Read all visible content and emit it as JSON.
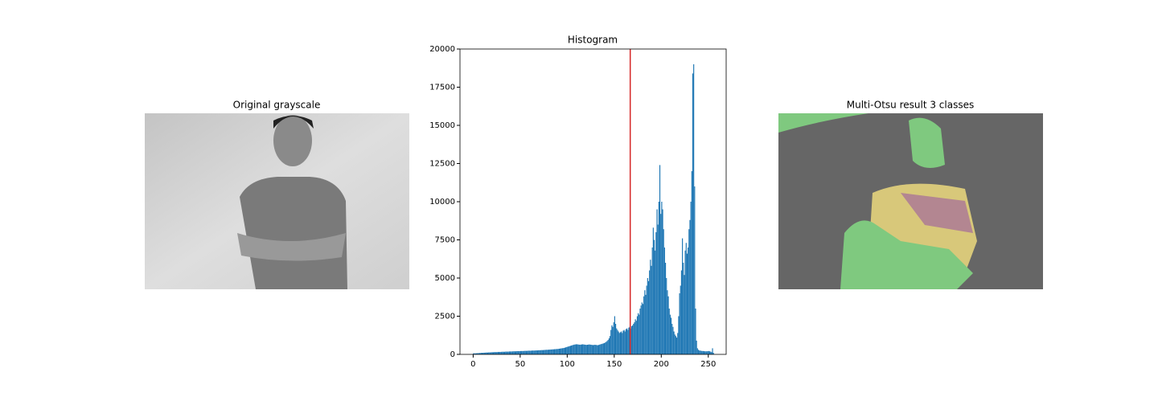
{
  "chart_data": [
    {
      "type": "image",
      "title": "Original grayscale"
    },
    {
      "type": "histogram",
      "title": "Histogram",
      "color": "#1f77b4",
      "bins": [
        0,
        1,
        2,
        3,
        4,
        5,
        6,
        7,
        8,
        9,
        10,
        11,
        12,
        13,
        14,
        15,
        16,
        17,
        18,
        19,
        20,
        21,
        22,
        23,
        24,
        25,
        26,
        27,
        28,
        29,
        30,
        31,
        32,
        33,
        34,
        35,
        36,
        37,
        38,
        39,
        40,
        41,
        42,
        43,
        44,
        45,
        46,
        47,
        48,
        49,
        50,
        51,
        52,
        53,
        54,
        55,
        56,
        57,
        58,
        59,
        60,
        61,
        62,
        63,
        64,
        65,
        66,
        67,
        68,
        69,
        70,
        71,
        72,
        73,
        74,
        75,
        76,
        77,
        78,
        79,
        80,
        81,
        82,
        83,
        84,
        85,
        86,
        87,
        88,
        89,
        90,
        91,
        92,
        93,
        94,
        95,
        96,
        97,
        98,
        99,
        100,
        101,
        102,
        103,
        104,
        105,
        106,
        107,
        108,
        109,
        110,
        111,
        112,
        113,
        114,
        115,
        116,
        117,
        118,
        119,
        120,
        121,
        122,
        123,
        124,
        125,
        126,
        127,
        128,
        129,
        130,
        131,
        132,
        133,
        134,
        135,
        136,
        137,
        138,
        139,
        140,
        141,
        142,
        143,
        144,
        145,
        146,
        147,
        148,
        149,
        150,
        151,
        152,
        153,
        154,
        155,
        156,
        157,
        158,
        159,
        160,
        161,
        162,
        163,
        164,
        165,
        166,
        167,
        168,
        169,
        170,
        171,
        172,
        173,
        174,
        175,
        176,
        177,
        178,
        179,
        180,
        181,
        182,
        183,
        184,
        185,
        186,
        187,
        188,
        189,
        190,
        191,
        192,
        193,
        194,
        195,
        196,
        197,
        198,
        199,
        200,
        201,
        202,
        203,
        204,
        205,
        206,
        207,
        208,
        209,
        210,
        211,
        212,
        213,
        214,
        215,
        216,
        217,
        218,
        219,
        220,
        221,
        222,
        223,
        224,
        225,
        226,
        227,
        228,
        229,
        230,
        231,
        232,
        233,
        234,
        235,
        236,
        237,
        238,
        239,
        240,
        241,
        242,
        243,
        244,
        245,
        246,
        247,
        248,
        249,
        250,
        251,
        252,
        253,
        254,
        255,
        256
      ],
      "values": [
        80,
        60,
        70,
        70,
        80,
        80,
        90,
        90,
        100,
        100,
        100,
        110,
        110,
        120,
        120,
        120,
        130,
        130,
        130,
        140,
        140,
        140,
        150,
        150,
        150,
        150,
        160,
        160,
        160,
        160,
        170,
        170,
        170,
        170,
        180,
        180,
        180,
        180,
        190,
        190,
        190,
        190,
        200,
        200,
        200,
        200,
        210,
        210,
        210,
        210,
        220,
        220,
        220,
        220,
        230,
        230,
        230,
        230,
        240,
        240,
        240,
        240,
        250,
        250,
        250,
        250,
        260,
        260,
        260,
        270,
        270,
        270,
        280,
        280,
        280,
        290,
        290,
        300,
        300,
        300,
        310,
        310,
        320,
        320,
        330,
        330,
        340,
        340,
        350,
        350,
        360,
        370,
        380,
        390,
        400,
        410,
        420,
        440,
        460,
        480,
        500,
        520,
        540,
        560,
        580,
        600,
        620,
        640,
        650,
        660,
        660,
        650,
        640,
        630,
        640,
        650,
        660,
        650,
        640,
        630,
        620,
        630,
        640,
        650,
        640,
        630,
        620,
        610,
        620,
        630,
        620,
        610,
        600,
        620,
        640,
        660,
        680,
        700,
        720,
        740,
        780,
        820,
        880,
        950,
        1050,
        1200,
        1600,
        1900,
        1800,
        2100,
        2500,
        2000,
        1700,
        1600,
        1500,
        1400,
        1450,
        1500,
        1400,
        1550,
        1600,
        1500,
        1650,
        1700,
        1600,
        1750,
        1800,
        1700,
        1850,
        1900,
        2000,
        2100,
        2300,
        2200,
        2500,
        2700,
        2600,
        3000,
        3200,
        3400,
        3300,
        3800,
        4200,
        3900,
        4500,
        5000,
        4800,
        5500,
        6200,
        5800,
        7000,
        8300,
        7500,
        6800,
        8000,
        9500,
        8500,
        10000,
        12400,
        9200,
        10000,
        9500,
        8200,
        7000,
        6000,
        5000,
        4200,
        3800,
        3000,
        2600,
        2400,
        2000,
        1800,
        1500,
        1300,
        1200,
        1100,
        1400,
        2500,
        4000,
        4500,
        5500,
        7600,
        6000,
        5200,
        6800,
        7300,
        6600,
        7000,
        8200,
        8800,
        10000,
        12000,
        18400,
        19000,
        11000,
        3000,
        900,
        400,
        300,
        250,
        250,
        230,
        220,
        220,
        210,
        200,
        200,
        200,
        210,
        220,
        200,
        180,
        150,
        400,
        100
      ],
      "thresholds": [
        167
      ],
      "threshold_color": "#d62728",
      "xlim": [
        -14,
        269
      ],
      "xticks": [
        0,
        50,
        100,
        150,
        200,
        250
      ],
      "ylim": [
        0,
        20000
      ],
      "yticks": [
        0,
        2500,
        5000,
        7500,
        10000,
        12500,
        15000,
        17500,
        20000
      ]
    },
    {
      "type": "image",
      "title": "Multi-Otsu result 3 classes"
    }
  ]
}
